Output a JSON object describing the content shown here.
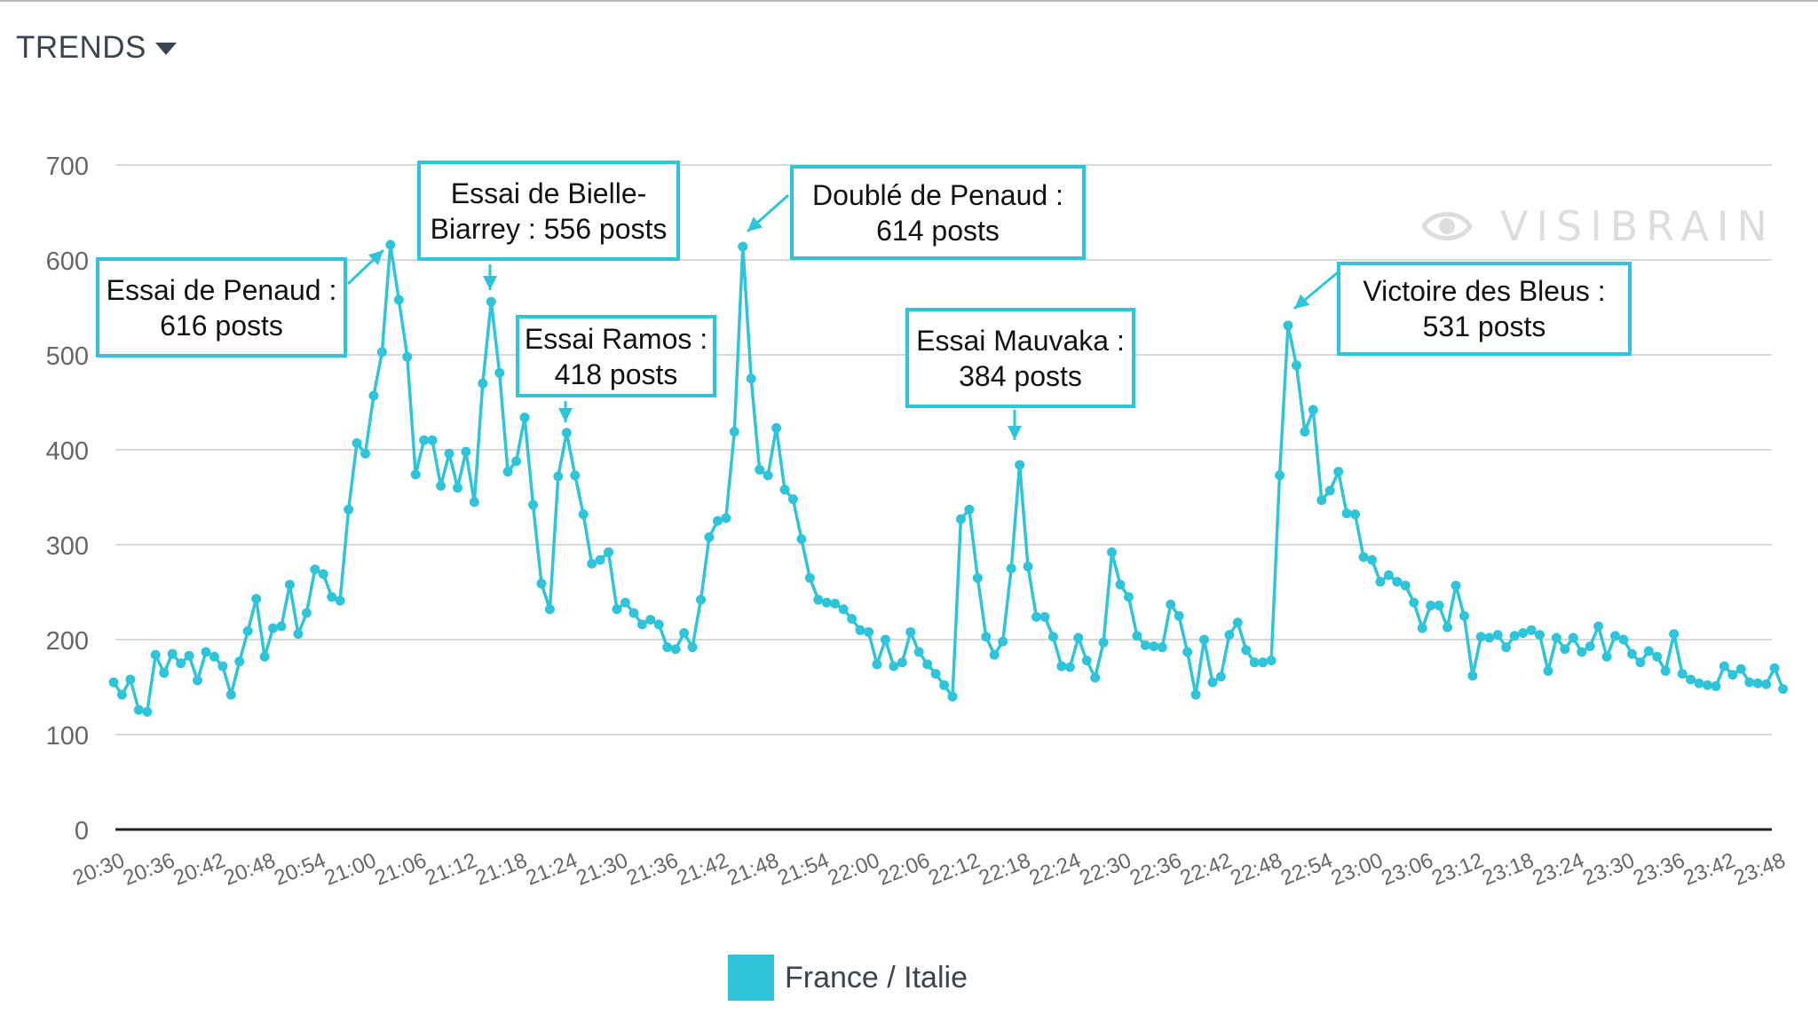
{
  "header": {
    "title": "TRENDS",
    "caret_icon": "caret-down-icon"
  },
  "watermark": {
    "text": "VISIBRAIN",
    "icon": "eye-icon"
  },
  "colors": {
    "series": "#2ec4d9",
    "grid": "#d9d9d9",
    "axis": "#222222",
    "tick_text": "#666666"
  },
  "legend": {
    "label": "France / Italie",
    "color": "#2ec4d9"
  },
  "annotations": [
    {
      "line1": "Essai de Penaud :",
      "line2": "616 posts"
    },
    {
      "line1": "Essai de Bielle-",
      "line2": "Biarrey : 556 posts"
    },
    {
      "line1": "Essai Ramos :",
      "line2": "418 posts"
    },
    {
      "line1": "Doublé de Penaud :",
      "line2": "614 posts"
    },
    {
      "line1": "Essai Mauvaka :",
      "line2": "384 posts"
    },
    {
      "line1": "Victoire des Bleus :",
      "line2": "531 posts"
    }
  ],
  "chart_data": {
    "type": "line",
    "title": "",
    "xlabel": "",
    "ylabel": "",
    "ylim": [
      0,
      700
    ],
    "yticks": [
      "0",
      "100",
      "200",
      "300",
      "400",
      "500",
      "600",
      "700"
    ],
    "grid": true,
    "legend_position": "bottom-center",
    "xtick_labels": [
      "20:30",
      "20:36",
      "20:42",
      "20:48",
      "20:54",
      "21:00",
      "21:06",
      "21:12",
      "21:18",
      "21:24",
      "21:30",
      "21:36",
      "21:42",
      "21:48",
      "21:54",
      "22:00",
      "22:06",
      "22:12",
      "22:18",
      "22:24",
      "22:30",
      "22:36",
      "22:42",
      "22:48",
      "22:54",
      "23:00",
      "23:06",
      "23:12",
      "23:18",
      "23:24",
      "23:30",
      "23:36",
      "23:42",
      "23:48"
    ],
    "x_start": "20:30",
    "x_step_minutes": 1,
    "series": [
      {
        "name": "France / Italie",
        "values": [
          155,
          142,
          158,
          126,
          124,
          184,
          165,
          185,
          175,
          183,
          157,
          187,
          182,
          172,
          142,
          177,
          209,
          243,
          182,
          212,
          214,
          258,
          206,
          228,
          274,
          269,
          245,
          241,
          337,
          407,
          396,
          457,
          503,
          616,
          558,
          498,
          374,
          410,
          410,
          362,
          396,
          360,
          398,
          345,
          470,
          556,
          481,
          377,
          388,
          434,
          342,
          259,
          232,
          372,
          418,
          373,
          332,
          280,
          284,
          292,
          232,
          239,
          228,
          216,
          221,
          216,
          192,
          190,
          207,
          192,
          242,
          308,
          325,
          328,
          419,
          614,
          475,
          379,
          373,
          423,
          358,
          348,
          306,
          265,
          242,
          239,
          238,
          232,
          222,
          210,
          208,
          174,
          200,
          172,
          176,
          208,
          187,
          174,
          164,
          152,
          140,
          327,
          337,
          265,
          203,
          184,
          198,
          275,
          384,
          277,
          224,
          224,
          203,
          172,
          171,
          202,
          178,
          160,
          197,
          292,
          258,
          245,
          204,
          194,
          193,
          192,
          237,
          225,
          187,
          142,
          200,
          155,
          161,
          205,
          218,
          189,
          176,
          176,
          178,
          373,
          531,
          489,
          419,
          442,
          347,
          357,
          377,
          333,
          332,
          287,
          284,
          261,
          268,
          261,
          257,
          239,
          212,
          236,
          236,
          213,
          257,
          225,
          162,
          203,
          202,
          205,
          192,
          204,
          207,
          210,
          205,
          167,
          202,
          190,
          202,
          187,
          193,
          214,
          182,
          204,
          200,
          185,
          176,
          188,
          182,
          167,
          206,
          164,
          158,
          154,
          152,
          151,
          172,
          163,
          169,
          155,
          154,
          153,
          170,
          148
        ]
      }
    ]
  }
}
